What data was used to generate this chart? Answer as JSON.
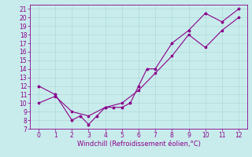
{
  "title": "",
  "xlabel": "Windchill (Refroidissement éolien,°C)",
  "bg_color": "#c8ecec",
  "line_color": "#8b008b",
  "grid_color": "#b0d8d8",
  "xlim": [
    -0.5,
    12.5
  ],
  "ylim": [
    7,
    21.5
  ],
  "xticks": [
    0,
    1,
    2,
    3,
    4,
    5,
    6,
    7,
    8,
    9,
    10,
    11,
    12
  ],
  "yticks": [
    7,
    8,
    9,
    10,
    11,
    12,
    13,
    14,
    15,
    16,
    17,
    18,
    19,
    20,
    21
  ],
  "zigzag_x": [
    0,
    1,
    2,
    2.5,
    3,
    3.5,
    4,
    4.5,
    5,
    5.5,
    6,
    6.5,
    7,
    8,
    9,
    10,
    11,
    12
  ],
  "zigzag_y": [
    12,
    11,
    8,
    8.5,
    7.5,
    8.5,
    9.5,
    9.5,
    9.5,
    10,
    12,
    14,
    14,
    17,
    18.5,
    20.5,
    19.5,
    21
  ],
  "diag_x": [
    0,
    1,
    2,
    3,
    4,
    5,
    6,
    7,
    8,
    9,
    10,
    11,
    12
  ],
  "diag_y": [
    10.0,
    10.8,
    9.0,
    8.5,
    9.5,
    10.0,
    11.5,
    13.5,
    15.5,
    18.0,
    16.5,
    18.5,
    20.0
  ],
  "tick_fontsize": 5.5,
  "xlabel_fontsize": 6.0
}
